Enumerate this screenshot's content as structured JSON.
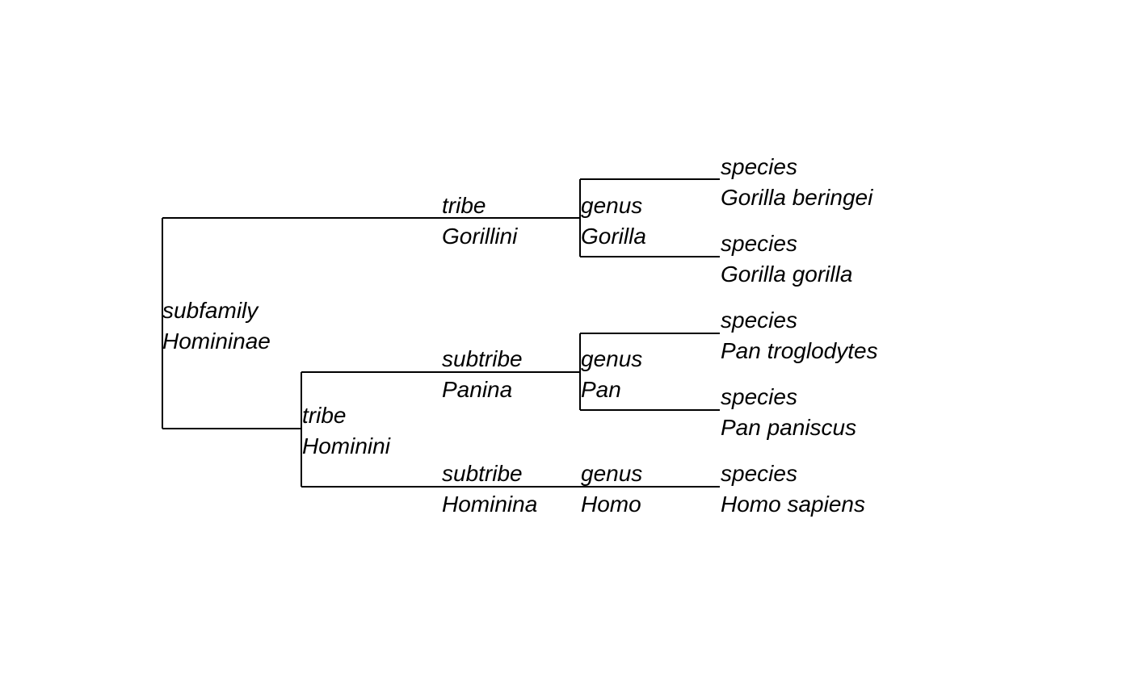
{
  "colors": {
    "line": "#000000",
    "text": "#000000",
    "background": "#ffffff"
  },
  "nodes": [
    {
      "id": "subfamily",
      "rank": "subfamily",
      "name": "Homininae"
    },
    {
      "id": "tribe-gorillini",
      "rank": "tribe",
      "name": "Gorillini"
    },
    {
      "id": "tribe-hominini",
      "rank": "tribe",
      "name": "Hominini"
    },
    {
      "id": "genus-gorilla",
      "rank": "genus",
      "name": "Gorilla"
    },
    {
      "id": "subtribe-panina",
      "rank": "subtribe",
      "name": "Panina"
    },
    {
      "id": "subtribe-hominina",
      "rank": "subtribe",
      "name": "Hominina"
    },
    {
      "id": "genus-pan",
      "rank": "genus",
      "name": "Pan"
    },
    {
      "id": "genus-homo",
      "rank": "genus",
      "name": "Homo"
    },
    {
      "id": "species-gorilla-beringei",
      "rank": "species",
      "name": "Gorilla beringei"
    },
    {
      "id": "species-gorilla-gorilla",
      "rank": "species",
      "name": "Gorilla gorilla"
    },
    {
      "id": "species-pan-troglodytes",
      "rank": "species",
      "name": "Pan troglodytes"
    },
    {
      "id": "species-pan-paniscus",
      "rank": "species",
      "name": "Pan paniscus"
    },
    {
      "id": "species-homo-sapiens",
      "rank": "species",
      "name": "Homo sapiens"
    }
  ]
}
